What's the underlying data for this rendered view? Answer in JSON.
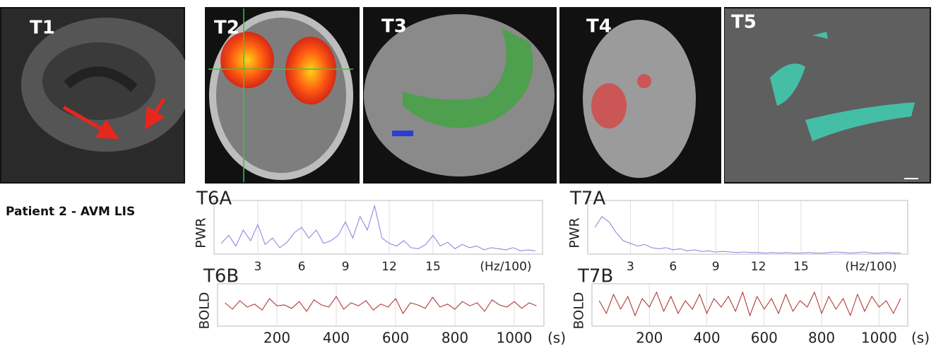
{
  "panels": [
    {
      "label": "T1"
    },
    {
      "label": "T2"
    },
    {
      "label": "T3"
    },
    {
      "label": "T4"
    },
    {
      "label": "T5"
    }
  ],
  "row_label": "Patient 2 - AVM LIS",
  "chart_data": [
    {
      "type": "line",
      "title": "T6A",
      "y_label": "PWR",
      "x_unit": "(Hz/100)",
      "color": "#8a8ae6",
      "xlim": [
        0,
        22.5
      ],
      "ylim": [
        0,
        100
      ],
      "xticks": [
        3,
        6,
        9,
        12,
        15
      ],
      "grid": true,
      "x": [
        0.5,
        1,
        1.5,
        2,
        2.5,
        3,
        3.5,
        4,
        4.5,
        5,
        5.5,
        6,
        6.5,
        7,
        7.5,
        8,
        8.5,
        9,
        9.5,
        10,
        10.5,
        11,
        11.5,
        12,
        12.5,
        13,
        13.5,
        14,
        14.5,
        15,
        15.5,
        16,
        16.5,
        17,
        17.5,
        18,
        18.5,
        19,
        19.5,
        20,
        20.5,
        21,
        21.5,
        22
      ],
      "values": [
        20,
        35,
        15,
        45,
        25,
        55,
        18,
        30,
        12,
        22,
        40,
        50,
        30,
        45,
        20,
        25,
        35,
        60,
        30,
        70,
        45,
        90,
        30,
        20,
        15,
        25,
        12,
        10,
        18,
        35,
        15,
        22,
        10,
        18,
        12,
        15,
        8,
        12,
        10,
        8,
        12,
        6,
        8,
        6
      ]
    },
    {
      "type": "line",
      "title": "T6B",
      "y_label": "BOLD",
      "x_unit": "(s)",
      "color": "#b03a3a",
      "xlim": [
        0,
        1100
      ],
      "ylim": [
        0,
        100
      ],
      "xticks": [
        200,
        400,
        600,
        800,
        1000
      ],
      "grid": true,
      "x": [
        25,
        50,
        75,
        100,
        125,
        150,
        175,
        200,
        225,
        250,
        275,
        300,
        325,
        350,
        375,
        400,
        425,
        450,
        475,
        500,
        525,
        550,
        575,
        600,
        625,
        650,
        675,
        700,
        725,
        750,
        775,
        800,
        825,
        850,
        875,
        900,
        925,
        950,
        975,
        1000,
        1025,
        1050,
        1075
      ],
      "values": [
        55,
        40,
        60,
        45,
        52,
        38,
        65,
        48,
        50,
        42,
        58,
        35,
        62,
        50,
        45,
        70,
        40,
        55,
        48,
        60,
        38,
        52,
        45,
        65,
        30,
        55,
        50,
        42,
        68,
        45,
        52,
        40,
        58,
        48,
        55,
        35,
        62,
        50,
        45,
        58,
        42,
        55,
        48
      ]
    },
    {
      "type": "line",
      "title": "T7A",
      "y_label": "PWR",
      "x_unit": "(Hz/100)",
      "color": "#8a8ae6",
      "xlim": [
        0,
        22.5
      ],
      "ylim": [
        0,
        100
      ],
      "xticks": [
        3,
        6,
        9,
        12,
        15
      ],
      "grid": true,
      "x": [
        0.5,
        1,
        1.5,
        2,
        2.5,
        3,
        3.5,
        4,
        4.5,
        5,
        5.5,
        6,
        6.5,
        7,
        7.5,
        8,
        8.5,
        9,
        9.5,
        10,
        10.5,
        11,
        11.5,
        12,
        12.5,
        13,
        13.5,
        14,
        14.5,
        15,
        15.5,
        16,
        16.5,
        17,
        17.5,
        18,
        18.5,
        19,
        19.5,
        20,
        20.5,
        21,
        21.5,
        22
      ],
      "values": [
        50,
        70,
        60,
        40,
        25,
        20,
        15,
        18,
        12,
        10,
        12,
        8,
        10,
        6,
        8,
        5,
        6,
        4,
        5,
        4,
        3,
        4,
        3,
        3,
        2,
        3,
        2,
        3,
        2,
        2,
        3,
        2,
        2,
        3,
        4,
        3,
        2,
        3,
        4,
        2,
        2,
        3,
        2,
        2
      ]
    },
    {
      "type": "line",
      "title": "T7B",
      "y_label": "BOLD",
      "x_unit": "(s)",
      "color": "#b03a3a",
      "xlim": [
        0,
        1100
      ],
      "ylim": [
        0,
        100
      ],
      "xticks": [
        200,
        400,
        600,
        800,
        1000
      ],
      "grid": true,
      "x": [
        25,
        50,
        75,
        100,
        125,
        150,
        175,
        200,
        225,
        250,
        275,
        300,
        325,
        350,
        375,
        400,
        425,
        450,
        475,
        500,
        525,
        550,
        575,
        600,
        625,
        650,
        675,
        700,
        725,
        750,
        775,
        800,
        825,
        850,
        875,
        900,
        925,
        950,
        975,
        1000,
        1025,
        1050,
        1075
      ],
      "values": [
        60,
        30,
        75,
        40,
        70,
        25,
        65,
        45,
        80,
        35,
        70,
        30,
        60,
        40,
        75,
        30,
        65,
        45,
        70,
        35,
        80,
        25,
        70,
        40,
        65,
        30,
        75,
        35,
        60,
        45,
        80,
        30,
        70,
        40,
        65,
        25,
        75,
        35,
        70,
        45,
        60,
        30,
        65
      ]
    }
  ]
}
